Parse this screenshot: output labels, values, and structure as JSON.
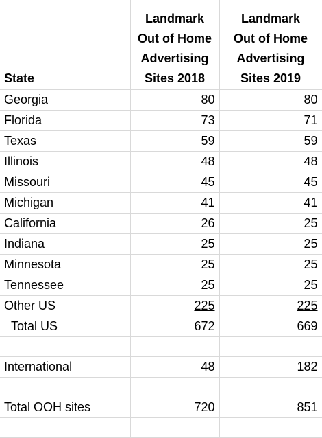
{
  "header": {
    "state": "State",
    "col_2018": [
      "Landmark",
      "Out of Home",
      "Advertising",
      "Sites 2018"
    ],
    "col_2019": [
      "Landmark",
      "Out of Home",
      "Advertising",
      "Sites 2019"
    ]
  },
  "rows": [
    {
      "state": "Georgia",
      "v2018": "80",
      "v2019": "80"
    },
    {
      "state": "Florida",
      "v2018": "73",
      "v2019": "71"
    },
    {
      "state": "Texas",
      "v2018": "59",
      "v2019": "59"
    },
    {
      "state": "Illinois",
      "v2018": "48",
      "v2019": "48"
    },
    {
      "state": "Missouri",
      "v2018": "45",
      "v2019": "45"
    },
    {
      "state": "Michigan",
      "v2018": "41",
      "v2019": "41"
    },
    {
      "state": "California",
      "v2018": "26",
      "v2019": "25"
    },
    {
      "state": "Indiana",
      "v2018": "25",
      "v2019": "25"
    },
    {
      "state": "Minnesota",
      "v2018": "25",
      "v2019": "25"
    },
    {
      "state": "Tennessee",
      "v2018": "25",
      "v2019": "25"
    },
    {
      "state": "Other US",
      "v2018": "225",
      "v2019": "225"
    }
  ],
  "total_us": {
    "state": "Total US",
    "v2018": "672",
    "v2019": "669"
  },
  "international": {
    "state": "International",
    "v2018": "48",
    "v2019": "182"
  },
  "total_ooh": {
    "state": "Total OOH sites",
    "v2018": "720",
    "v2019": "851"
  }
}
